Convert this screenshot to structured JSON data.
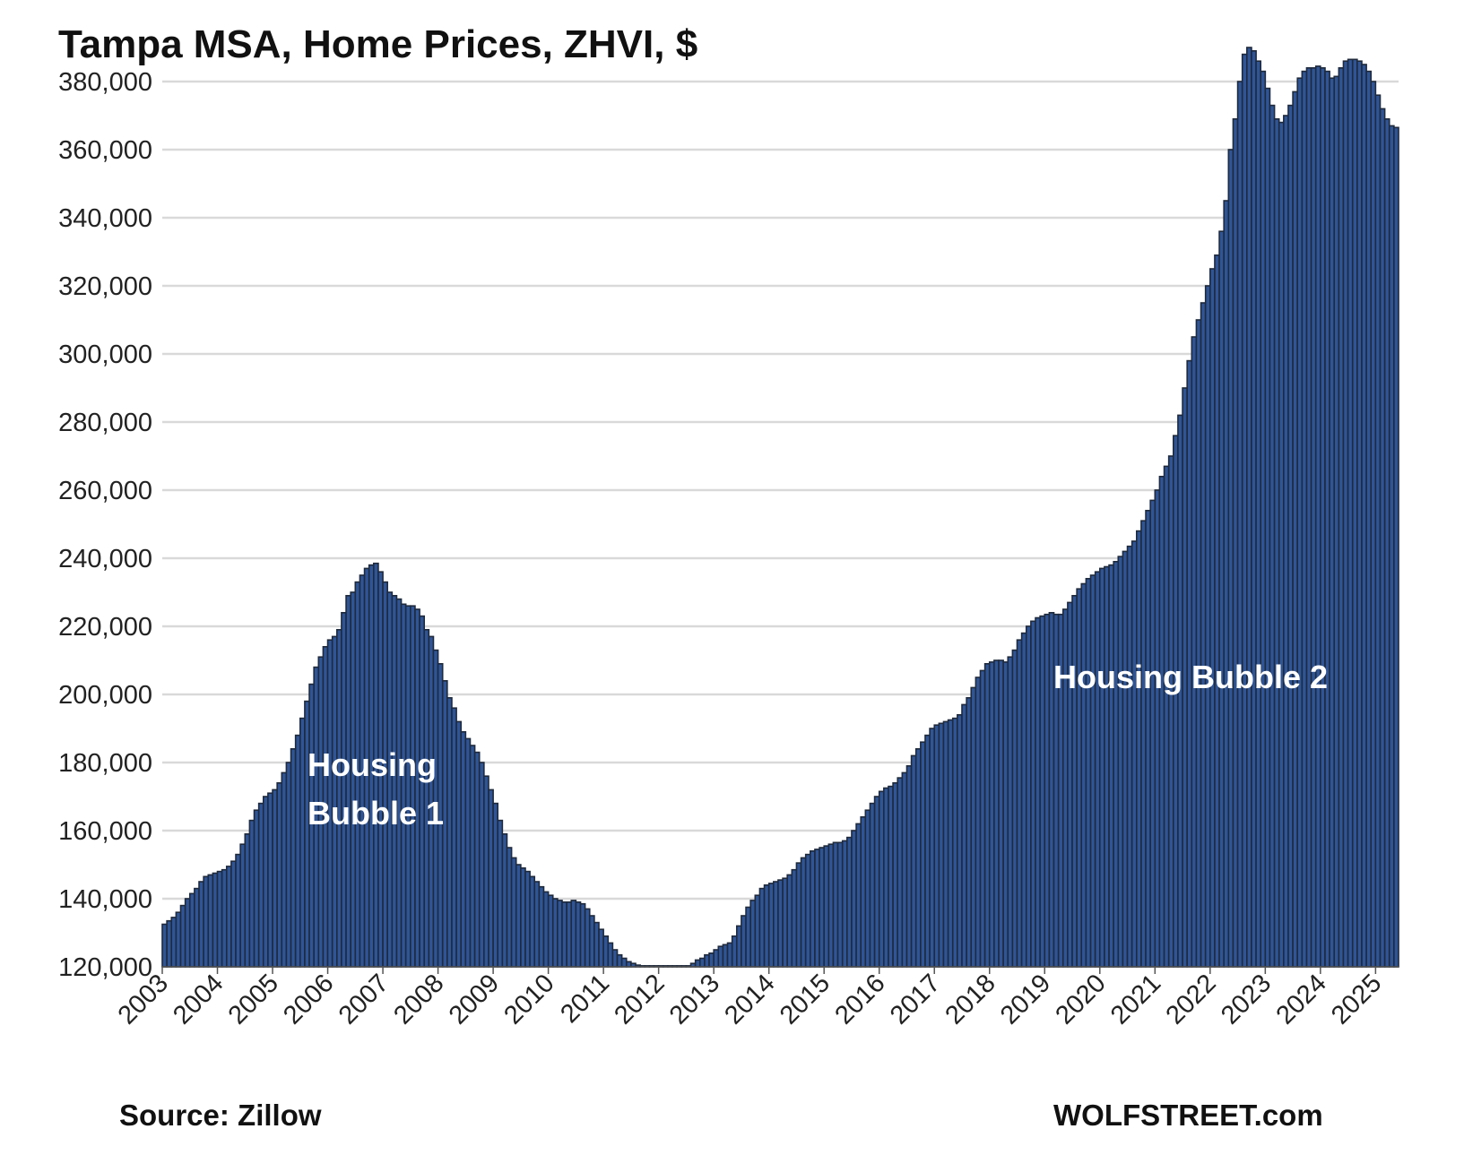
{
  "chart_data": {
    "type": "bar",
    "title": "Tampa MSA, Home Prices, ZHVI, $",
    "xlabel": "",
    "ylabel": "",
    "ylim": [
      120000,
      380000
    ],
    "yticks": [
      120000,
      140000,
      160000,
      180000,
      200000,
      220000,
      240000,
      260000,
      280000,
      300000,
      320000,
      340000,
      360000,
      380000
    ],
    "ytick_labels": [
      "120,000",
      "140,000",
      "160,000",
      "180,000",
      "200,000",
      "220,000",
      "240,000",
      "260,000",
      "280,000",
      "300,000",
      "320,000",
      "340,000",
      "360,000",
      "380,000"
    ],
    "xtick_labels": [
      "2003",
      "2004",
      "2005",
      "2006",
      "2007",
      "2008",
      "2009",
      "2010",
      "2011",
      "2012",
      "2013",
      "2014",
      "2015",
      "2016",
      "2017",
      "2018",
      "2019",
      "2020",
      "2021",
      "2022",
      "2023",
      "2024",
      "2025"
    ],
    "grid": true,
    "frequency": "monthly",
    "start": "2003-01",
    "values_thousands": [
      132.5,
      133.5,
      134.5,
      136,
      138,
      140,
      141.5,
      143,
      145,
      146.5,
      147,
      147.5,
      148,
      148.5,
      149.5,
      151,
      153,
      156,
      159,
      163,
      166,
      168,
      170,
      171,
      172,
      174,
      177,
      180,
      184,
      188,
      193,
      198,
      203,
      208,
      211,
      214,
      216,
      217,
      219,
      224,
      229,
      230,
      233,
      235,
      237,
      238,
      238.5,
      236,
      233,
      230,
      229,
      228,
      226.5,
      226,
      226,
      225,
      223,
      219,
      217,
      213,
      209,
      204,
      199,
      196,
      192,
      189,
      187,
      185,
      183,
      180,
      176,
      172,
      168,
      163,
      159,
      155,
      152,
      150,
      149,
      148,
      146.5,
      145,
      143.5,
      142,
      141,
      140,
      139.5,
      139,
      139,
      139.5,
      139,
      138.5,
      137,
      135,
      133,
      131,
      129,
      127,
      125,
      123.5,
      122.5,
      121.5,
      121,
      120.5,
      120,
      119.5,
      119.5,
      119.3,
      119.3,
      119.3,
      119.3,
      119.3,
      119.3,
      119.5,
      120,
      121,
      122,
      122.5,
      123.5,
      124,
      125,
      126,
      126.5,
      127,
      129,
      132,
      135,
      137.5,
      139.5,
      141,
      143,
      144,
      144.5,
      145,
      145.5,
      146,
      147,
      148.5,
      150.5,
      152,
      153,
      154,
      154.5,
      155,
      155.5,
      156,
      156.5,
      156.5,
      157,
      158,
      160,
      162,
      164,
      166,
      168,
      170,
      171.5,
      172.5,
      173,
      174,
      175.5,
      177,
      179,
      182,
      184,
      186,
      188,
      190,
      191,
      191.5,
      192,
      192.5,
      193,
      194,
      197,
      199,
      202,
      205,
      207,
      209,
      209.5,
      210,
      210,
      209.5,
      211,
      213,
      216,
      218,
      220,
      221.5,
      222.5,
      223,
      223.5,
      224,
      223.5,
      223.5,
      225,
      227,
      229,
      231,
      232.5,
      234,
      235,
      236,
      237,
      237.5,
      238,
      239,
      240.5,
      242,
      243.5,
      245,
      248,
      251,
      254,
      257,
      260,
      264,
      267,
      270,
      276,
      282,
      290,
      298,
      305,
      310,
      315,
      320,
      325,
      329,
      336,
      345,
      360,
      369,
      380,
      388,
      390,
      389,
      386,
      383,
      378,
      373,
      369,
      368,
      370,
      373,
      377,
      381,
      383,
      384,
      384,
      384.5,
      384,
      383,
      381,
      381.5,
      384,
      386,
      386.5,
      386.5,
      386,
      385,
      383,
      380,
      376,
      372,
      369,
      367,
      366.5
    ],
    "annotations": [
      "Housing",
      "Bubble 1",
      "Housing Bubble 2"
    ],
    "colors": {
      "bar_fill": "#2f5597",
      "bar_edge": "#1f2a3c",
      "grid": "#d9d9d9"
    }
  },
  "footer": {
    "source": "Source: Zillow",
    "brand": "WOLFSTREET.com"
  }
}
